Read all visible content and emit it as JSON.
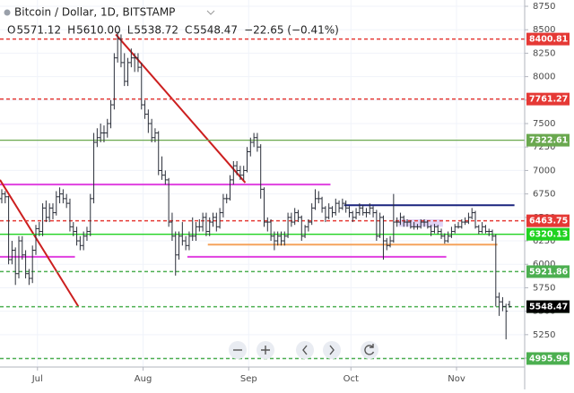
{
  "chart_data": {
    "type": "ohlc",
    "title": "Bitcoin / Dollar, 1D, BITSTAMP",
    "legend": [
      {
        "label": "O",
        "value": "5571.12"
      },
      {
        "label": "H",
        "value": "5610.00"
      },
      {
        "label": "L",
        "value": "5538.72"
      },
      {
        "label": "C",
        "value": "5548.47"
      }
    ],
    "change": "−22.65 (−0.41%)",
    "bar_color": "#2a2e39",
    "ylim": [
      4905,
      8817
    ],
    "yticks": [
      5000,
      5250,
      5500,
      5750,
      6000,
      6250,
      6500,
      6750,
      7000,
      7250,
      7500,
      7750,
      8000,
      8250,
      8500,
      8750
    ],
    "xlim": [
      0,
      154
    ],
    "xticks": [
      {
        "value": 11,
        "label": "Jul"
      },
      {
        "value": 42,
        "label": "Aug"
      },
      {
        "value": 73,
        "label": "Sep"
      },
      {
        "value": 103,
        "label": "Oct"
      },
      {
        "value": 134,
        "label": "Nov"
      }
    ],
    "grid": true,
    "ohlc": [
      [
        6700,
        6800,
        6650,
        6750
      ],
      [
        6750,
        6780,
        6650,
        6720
      ],
      [
        6720,
        6730,
        6000,
        6050
      ],
      [
        6050,
        6250,
        6000,
        6150
      ],
      [
        6150,
        6180,
        5780,
        5900
      ],
      [
        5900,
        6300,
        5850,
        6250
      ],
      [
        6250,
        6300,
        6050,
        6100
      ],
      [
        6100,
        6150,
        5850,
        5900
      ],
      [
        5900,
        5950,
        5780,
        5850
      ],
      [
        5850,
        6200,
        5800,
        6150
      ],
      [
        6150,
        6420,
        6100,
        6380
      ],
      [
        6380,
        6450,
        6300,
        6350
      ],
      [
        6350,
        6650,
        6300,
        6600
      ],
      [
        6600,
        6680,
        6450,
        6500
      ],
      [
        6500,
        6650,
        6450,
        6600
      ],
      [
        6600,
        6650,
        6480,
        6550
      ],
      [
        6550,
        6780,
        6520,
        6720
      ],
      [
        6720,
        6820,
        6650,
        6750
      ],
      [
        6750,
        6800,
        6650,
        6700
      ],
      [
        6700,
        6750,
        6600,
        6650
      ],
      [
        6650,
        6700,
        6350,
        6400
      ],
      [
        6400,
        6450,
        6300,
        6350
      ],
      [
        6350,
        6400,
        6200,
        6250
      ],
      [
        6250,
        6300,
        6150,
        6200
      ],
      [
        6200,
        6350,
        6150,
        6300
      ],
      [
        6300,
        6400,
        6250,
        6350
      ],
      [
        6350,
        6750,
        6300,
        6700
      ],
      [
        6700,
        7400,
        6650,
        7300
      ],
      [
        7300,
        7450,
        7250,
        7350
      ],
      [
        7350,
        7500,
        7300,
        7400
      ],
      [
        7400,
        7480,
        7300,
        7400
      ],
      [
        7400,
        7550,
        7350,
        7500
      ],
      [
        7500,
        7750,
        7450,
        7700
      ],
      [
        7700,
        8250,
        7650,
        8200
      ],
      [
        8200,
        8480,
        8150,
        8400
      ],
      [
        8400,
        8450,
        8100,
        8150
      ],
      [
        8150,
        8250,
        7900,
        7950
      ],
      [
        7950,
        8200,
        7900,
        8150
      ],
      [
        8150,
        8300,
        8100,
        8200
      ],
      [
        8200,
        8250,
        8050,
        8200
      ],
      [
        8200,
        8250,
        8050,
        8100
      ],
      [
        8100,
        8150,
        7650,
        7700
      ],
      [
        7700,
        7750,
        7550,
        7600
      ],
      [
        7600,
        7650,
        7400,
        7500
      ],
      [
        7500,
        7550,
        7300,
        7350
      ],
      [
        7350,
        7450,
        7300,
        7400
      ],
      [
        7400,
        7420,
        6950,
        7000
      ],
      [
        7000,
        7150,
        6900,
        6950
      ],
      [
        6950,
        7000,
        6850,
        6900
      ],
      [
        6900,
        6920,
        6400,
        6450
      ],
      [
        6450,
        6550,
        6250,
        6300
      ],
      [
        6300,
        6350,
        5880,
        6100
      ],
      [
        6100,
        6350,
        6050,
        6300
      ],
      [
        6300,
        6450,
        6200,
        6250
      ],
      [
        6250,
        6300,
        6150,
        6200
      ],
      [
        6200,
        6350,
        6150,
        6300
      ],
      [
        6300,
        6500,
        6250,
        6300
      ],
      [
        6300,
        6450,
        6250,
        6400
      ],
      [
        6400,
        6480,
        6350,
        6400
      ],
      [
        6400,
        6550,
        6350,
        6500
      ],
      [
        6500,
        6550,
        6300,
        6350
      ],
      [
        6350,
        6500,
        6300,
        6450
      ],
      [
        6450,
        6550,
        6400,
        6500
      ],
      [
        6500,
        6550,
        6350,
        6400
      ],
      [
        6400,
        6600,
        6380,
        6550
      ],
      [
        6550,
        6750,
        6500,
        6700
      ],
      [
        6700,
        6750,
        6650,
        6700
      ],
      [
        6700,
        6950,
        6680,
        6900
      ],
      [
        6900,
        7100,
        6850,
        7050
      ],
      [
        7050,
        7100,
        6950,
        7000
      ],
      [
        7000,
        7050,
        6900,
        6950
      ],
      [
        6950,
        7050,
        6900,
        7000
      ],
      [
        7000,
        7250,
        6980,
        7200
      ],
      [
        7200,
        7350,
        7150,
        7300
      ],
      [
        7300,
        7400,
        7250,
        7350
      ],
      [
        7350,
        7400,
        7200,
        7250
      ],
      [
        7250,
        7280,
        6700,
        6800
      ],
      [
        6800,
        6820,
        6400,
        6450
      ],
      [
        6450,
        6500,
        6350,
        6450
      ],
      [
        6450,
        6480,
        6250,
        6300
      ],
      [
        6300,
        6350,
        6150,
        6250
      ],
      [
        6250,
        6350,
        6200,
        6300
      ],
      [
        6300,
        6350,
        6200,
        6250
      ],
      [
        6250,
        6350,
        6200,
        6300
      ],
      [
        6300,
        6550,
        6280,
        6500
      ],
      [
        6500,
        6550,
        6400,
        6450
      ],
      [
        6450,
        6600,
        6420,
        6550
      ],
      [
        6550,
        6580,
        6450,
        6500
      ],
      [
        6500,
        6520,
        6250,
        6300
      ],
      [
        6300,
        6420,
        6280,
        6400
      ],
      [
        6400,
        6480,
        6350,
        6450
      ],
      [
        6450,
        6650,
        6420,
        6600
      ],
      [
        6600,
        6800,
        6580,
        6700
      ],
      [
        6700,
        6780,
        6650,
        6700
      ],
      [
        6700,
        6720,
        6550,
        6600
      ],
      [
        6600,
        6620,
        6450,
        6500
      ],
      [
        6500,
        6650,
        6480,
        6600
      ],
      [
        6600,
        6620,
        6500,
        6550
      ],
      [
        6550,
        6700,
        6520,
        6650
      ],
      [
        6650,
        6680,
        6550,
        6600
      ],
      [
        6600,
        6700,
        6580,
        6650
      ],
      [
        6650,
        6680,
        6550,
        6600
      ],
      [
        6600,
        6620,
        6500,
        6550
      ],
      [
        6550,
        6570,
        6450,
        6500
      ],
      [
        6500,
        6600,
        6480,
        6550
      ],
      [
        6550,
        6650,
        6520,
        6600
      ],
      [
        6600,
        6630,
        6520,
        6550
      ],
      [
        6550,
        6600,
        6500,
        6550
      ],
      [
        6550,
        6650,
        6530,
        6600
      ],
      [
        6600,
        6620,
        6500,
        6550
      ],
      [
        6550,
        6580,
        6250,
        6300
      ],
      [
        6300,
        6550,
        6280,
        6500
      ],
      [
        6500,
        6520,
        6050,
        6250
      ],
      [
        6250,
        6280,
        6150,
        6200
      ],
      [
        6200,
        6300,
        6180,
        6250
      ],
      [
        6250,
        6750,
        6230,
        6450
      ],
      [
        6450,
        6500,
        6400,
        6450
      ],
      [
        6450,
        6550,
        6420,
        6500
      ],
      [
        6500,
        6520,
        6400,
        6450
      ],
      [
        6450,
        6480,
        6400,
        6450
      ],
      [
        6450,
        6470,
        6380,
        6400
      ],
      [
        6400,
        6450,
        6370,
        6400
      ],
      [
        6400,
        6430,
        6370,
        6400
      ],
      [
        6400,
        6480,
        6380,
        6450
      ],
      [
        6450,
        6480,
        6400,
        6450
      ],
      [
        6450,
        6470,
        6380,
        6400
      ],
      [
        6400,
        6420,
        6300,
        6350
      ],
      [
        6350,
        6430,
        6330,
        6400
      ],
      [
        6400,
        6420,
        6320,
        6350
      ],
      [
        6350,
        6380,
        6270,
        6300
      ],
      [
        6300,
        6330,
        6220,
        6250
      ],
      [
        6250,
        6350,
        6230,
        6300
      ],
      [
        6300,
        6400,
        6280,
        6350
      ],
      [
        6350,
        6430,
        6330,
        6400
      ],
      [
        6400,
        6450,
        6380,
        6400
      ],
      [
        6400,
        6480,
        6380,
        6450
      ],
      [
        6450,
        6500,
        6420,
        6450
      ],
      [
        6450,
        6550,
        6430,
        6500
      ],
      [
        6500,
        6600,
        6480,
        6550
      ],
      [
        6550,
        6570,
        6380,
        6400
      ],
      [
        6400,
        6420,
        6320,
        6350
      ],
      [
        6350,
        6450,
        6330,
        6400
      ],
      [
        6400,
        6420,
        6330,
        6350
      ],
      [
        6350,
        6380,
        6300,
        6350
      ],
      [
        6350,
        6370,
        6250,
        6300
      ],
      [
        6300,
        6320,
        5550,
        5650
      ],
      [
        5650,
        5700,
        5450,
        5600
      ],
      [
        5600,
        5650,
        5500,
        5550
      ],
      [
        5550,
        5580,
        5200,
        5500
      ],
      [
        5571.12,
        5610,
        5538.72,
        5548.47
      ]
    ],
    "levels": [
      {
        "value": 8400.81,
        "color": "#e53935",
        "dash": true
      },
      {
        "value": 7761.27,
        "color": "#e53935",
        "dash": true
      },
      {
        "value": 7322.61,
        "color": "#6aa84f",
        "dash": false
      },
      {
        "value": 6463.75,
        "color": "#e53935",
        "dash": true
      },
      {
        "value": 6320.13,
        "color": "#21d321",
        "dash": false
      },
      {
        "value": 5921.86,
        "color": "#4caf50",
        "dash": true
      },
      {
        "value": 5547.93,
        "color": "#4caf50",
        "dash": true
      },
      {
        "value": 4995.96,
        "color": "#4caf50",
        "dash": true
      },
      {
        "value": 5548.47,
        "color": "#000000",
        "dash": null
      }
    ],
    "drawings": [
      {
        "kind": "line",
        "color": "#e040e0",
        "x": [
          0,
          97
        ],
        "y": [
          6850,
          6850
        ]
      },
      {
        "kind": "line",
        "color": "#e040e0",
        "x": [
          0,
          22
        ],
        "y": [
          6080,
          6080
        ]
      },
      {
        "kind": "line",
        "color": "#e040e0",
        "x": [
          55,
          131
        ],
        "y": [
          6080,
          6080
        ]
      },
      {
        "kind": "line",
        "color": "#f5a35c",
        "x": [
          61,
          146
        ],
        "y": [
          6210,
          6210
        ]
      },
      {
        "kind": "line",
        "color": "#1a237e",
        "x": [
          101,
          151
        ],
        "y": [
          6630,
          6630
        ]
      },
      {
        "kind": "line",
        "color": "#cc1f1f",
        "x": [
          0,
          23
        ],
        "y": [
          6900,
          5550
        ]
      },
      {
        "kind": "line",
        "color": "#cc1f1f",
        "x": [
          34,
          72
        ],
        "y": [
          8450,
          6870
        ]
      },
      {
        "kind": "box",
        "color": "#c9b8f0",
        "x": [
          117,
          130
        ],
        "y": [
          6400,
          6480
        ]
      }
    ]
  }
}
